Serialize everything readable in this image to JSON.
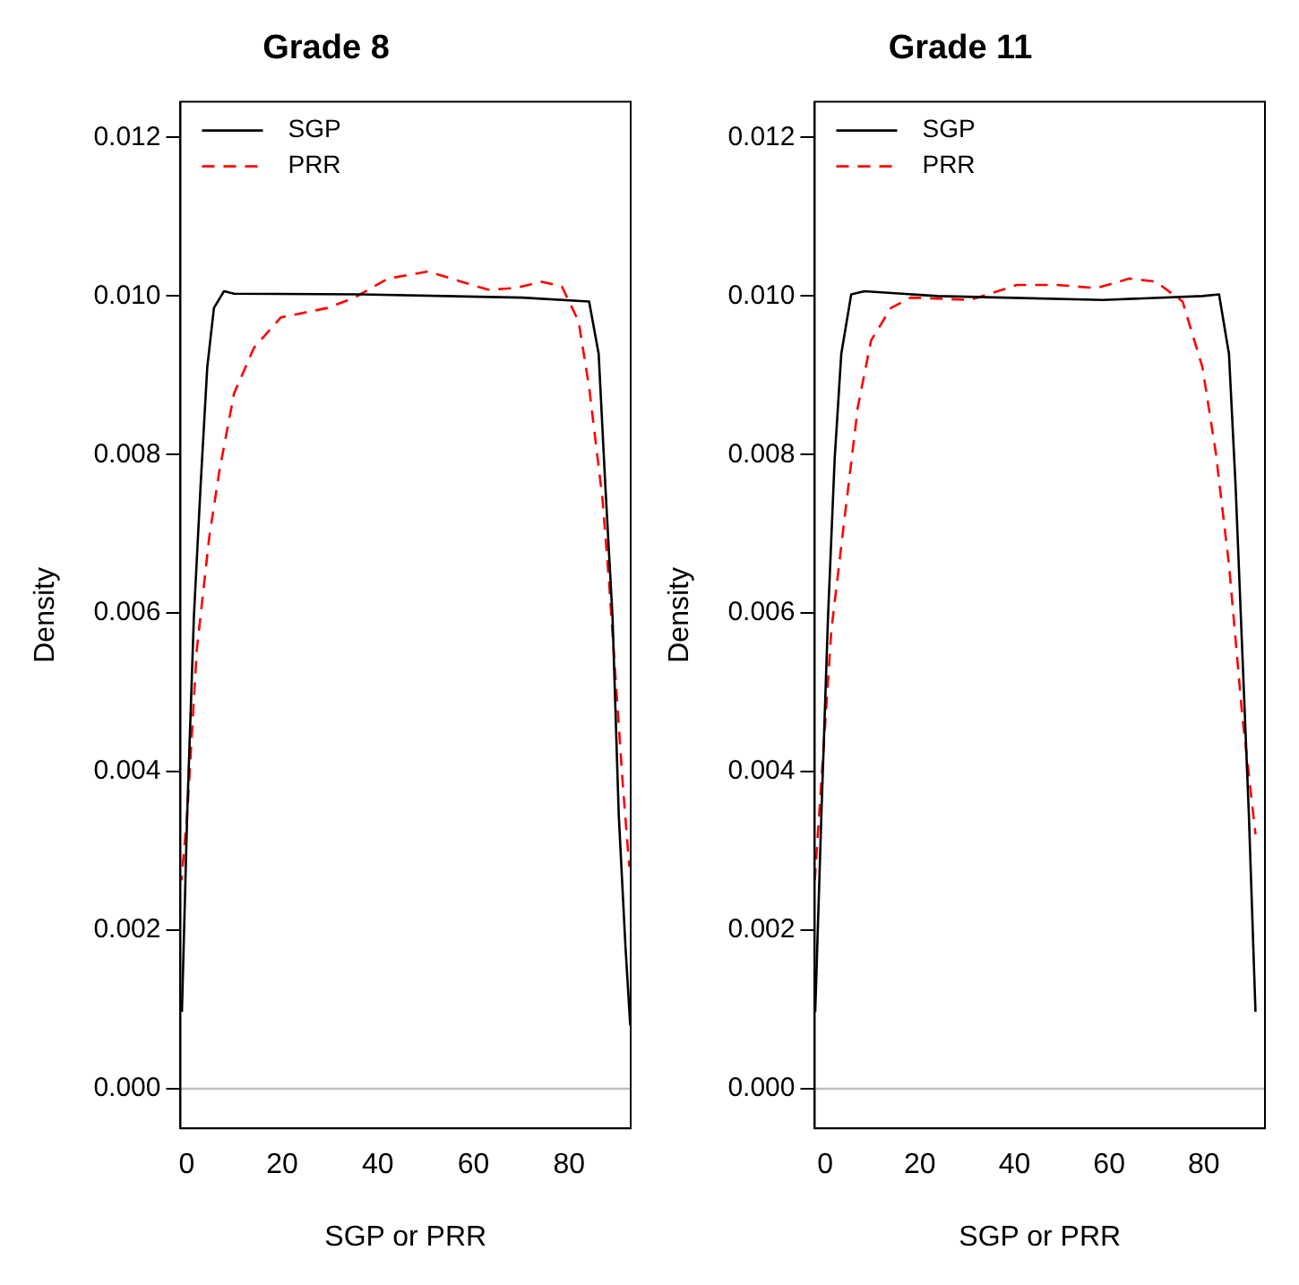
{
  "chart_data": [
    {
      "type": "line",
      "title": "Grade 8",
      "xlabel": "SGP or PRR",
      "ylabel": "Density",
      "xlim": [
        -1.3,
        92.9
      ],
      "ylim": [
        -0.0005,
        0.01245
      ],
      "xticks": [
        0,
        20,
        40,
        60,
        80
      ],
      "yticks": [
        {
          "value": 0,
          "label": "0.000"
        },
        {
          "value": 0.002,
          "label": "0.002"
        },
        {
          "value": 0.004,
          "label": "0.004"
        },
        {
          "value": 0.006,
          "label": "0.006"
        },
        {
          "value": 0.008,
          "label": "0.008"
        },
        {
          "value": 0.01,
          "label": "0.010"
        },
        {
          "value": 0.012,
          "label": "0.012"
        }
      ],
      "legend": "top left",
      "marker": "none",
      "ref_lines": [
        {
          "axis": "y",
          "value": 0,
          "color": "#bebebe"
        }
      ],
      "series": [
        {
          "name": "SGP",
          "color": "#000000",
          "line_style": "solid",
          "x": [
            -1.0,
            0.1,
            1.5,
            2.9,
            4.3,
            5.7,
            7.8,
            9.9,
            36.5,
            70.2,
            84.2,
            86.2,
            87.6,
            89.1,
            90.4,
            91.8,
            92.8
          ],
          "values": [
            0.00097,
            0.00346,
            0.00595,
            0.0076,
            0.0091,
            0.00985,
            0.01006,
            0.01003,
            0.01002,
            0.00998,
            0.00993,
            0.00927,
            0.0076,
            0.00595,
            0.00346,
            0.0018,
            0.0008
          ]
        },
        {
          "name": "PRR",
          "color": "#ff0000",
          "line_style": "dashed",
          "x": [
            -1.1,
            0.1,
            2.1,
            4.7,
            6.8,
            9.9,
            14.1,
            19.7,
            29.5,
            35.1,
            42.1,
            50.5,
            57.5,
            63.1,
            68.7,
            74.3,
            78.5,
            82.0,
            84.2,
            87.0,
            88.4,
            89.8,
            91.2,
            92.6
          ],
          "values": [
            0.00263,
            0.00346,
            0.00553,
            0.00695,
            0.00778,
            0.00877,
            0.00935,
            0.00973,
            0.00985,
            0.00998,
            0.01022,
            0.01031,
            0.01018,
            0.01008,
            0.0101,
            0.01018,
            0.01012,
            0.00968,
            0.00885,
            0.00744,
            0.00637,
            0.00512,
            0.00388,
            0.0028
          ]
        }
      ]
    },
    {
      "type": "line",
      "title": "Grade 11",
      "xlabel": "SGP or PRR",
      "ylabel": "Density",
      "xlim": [
        -2.2,
        92.9
      ],
      "ylim": [
        -0.0005,
        0.01245
      ],
      "xticks": [
        0,
        20,
        40,
        60,
        80
      ],
      "yticks": [
        {
          "value": 0,
          "label": "0.000"
        },
        {
          "value": 0.002,
          "label": "0.002"
        },
        {
          "value": 0.004,
          "label": "0.004"
        },
        {
          "value": 0.006,
          "label": "0.006"
        },
        {
          "value": 0.008,
          "label": "0.008"
        },
        {
          "value": 0.01,
          "label": "0.010"
        },
        {
          "value": 0.012,
          "label": "0.012"
        }
      ],
      "legend": "top left",
      "marker": "none",
      "ref_lines": [
        {
          "axis": "y",
          "value": 0,
          "color": "#bebebe"
        }
      ],
      "series": [
        {
          "name": "SGP",
          "color": "#000000",
          "line_style": "solid",
          "x": [
            -2.1,
            -0.8,
            0.6,
            2.0,
            3.4,
            5.5,
            8.3,
            23.7,
            37.7,
            58.7,
            79.7,
            83.2,
            85.3,
            86.7,
            88.1,
            89.5,
            90.9
          ],
          "values": [
            0.00097,
            0.00346,
            0.00595,
            0.00794,
            0.00927,
            0.01002,
            0.01006,
            0.01,
            0.00998,
            0.00995,
            0.01,
            0.01002,
            0.00927,
            0.0076,
            0.00553,
            0.00346,
            0.00097
          ]
        },
        {
          "name": "PRR",
          "color": "#ff0000",
          "line_style": "dashed",
          "x": [
            -2.2,
            -0.8,
            1.3,
            4.1,
            6.9,
            9.7,
            13.9,
            18.1,
            30.7,
            40.5,
            48.9,
            57.3,
            64.3,
            69.9,
            75.5,
            79.7,
            82.5,
            85.3,
            88.1,
            90.9
          ],
          "values": [
            0.00263,
            0.00388,
            0.00578,
            0.0072,
            0.0086,
            0.00944,
            0.00985,
            0.00998,
            0.00995,
            0.01014,
            0.01014,
            0.0101,
            0.01022,
            0.01018,
            0.00993,
            0.0091,
            0.00803,
            0.00661,
            0.00471,
            0.00321
          ]
        }
      ]
    }
  ]
}
